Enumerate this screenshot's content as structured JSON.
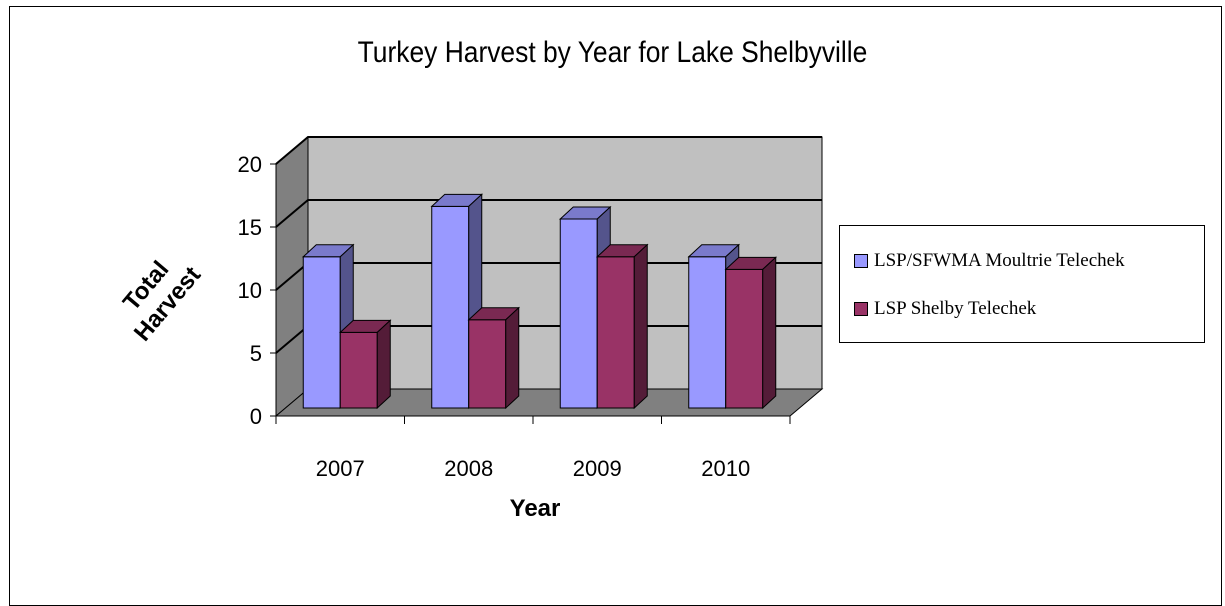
{
  "chart_data": {
    "type": "bar",
    "title": "Turkey Harvest by Year for Lake Shelbyville",
    "xlabel": "Year",
    "ylabel": "Total Harvest",
    "categories": [
      "2007",
      "2008",
      "2009",
      "2010"
    ],
    "yticks": [
      "0",
      "5",
      "10",
      "15",
      "20"
    ],
    "ylim": [
      0,
      20
    ],
    "grid": true,
    "legend_position": "right",
    "series": [
      {
        "name": "LSP/SFWMA Moultrie  Telechek",
        "values": [
          12,
          16,
          15,
          12
        ],
        "color": "#9999ff"
      },
      {
        "name": "LSP Shelby  Telechek",
        "values": [
          6,
          7,
          12,
          11
        ],
        "color": "#993366"
      }
    ]
  }
}
